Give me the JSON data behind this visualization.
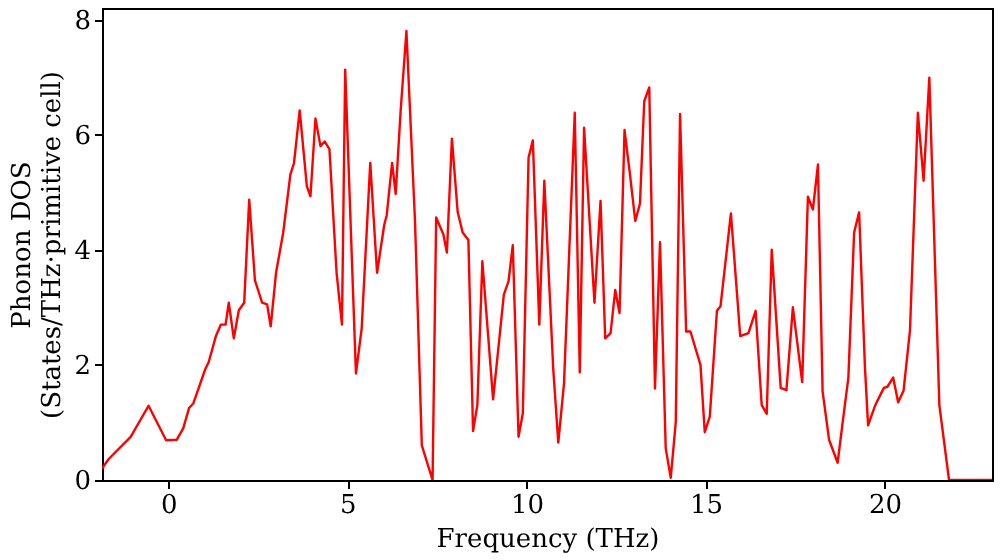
{
  "chart_data": {
    "type": "line",
    "xlabel": "Frequency (THz)",
    "ylabel": "Phonon DOS\n(States/THz·primitive cell)",
    "xlim": [
      -1.85,
      23
    ],
    "xticks": [
      0,
      5,
      10,
      15,
      20
    ],
    "ylim": [
      0,
      8.2
    ],
    "yticks": [
      0,
      2,
      4,
      6,
      8
    ],
    "grid": false,
    "legend": false,
    "marker": "none",
    "line_style": "solid",
    "x": [
      -1.85,
      -1.67,
      -1.05,
      -0.55,
      -0.06,
      0.24,
      0.42,
      0.58,
      0.7,
      1.03,
      1.13,
      1.33,
      1.47,
      1.6,
      1.69,
      1.83,
      1.97,
      2.12,
      2.26,
      2.42,
      2.62,
      2.76,
      2.86,
      3.01,
      3.21,
      3.41,
      3.51,
      3.67,
      3.87,
      3.97,
      4.11,
      4.25,
      4.37,
      4.5,
      4.7,
      4.85,
      4.94,
      5.24,
      5.4,
      5.64,
      5.83,
      6.03,
      6.1,
      6.25,
      6.35,
      6.49,
      6.65,
      6.89,
      7.08,
      7.38,
      7.48,
      7.68,
      7.78,
      7.92,
      8.08,
      8.22,
      8.38,
      8.51,
      8.63,
      8.77,
      9.07,
      9.37,
      9.5,
      9.62,
      9.78,
      9.9,
      10.06,
      10.18,
      10.36,
      10.5,
      10.75,
      10.89,
      11.05,
      11.35,
      11.49,
      11.61,
      11.9,
      12.07,
      12.2,
      12.35,
      12.48,
      12.6,
      12.74,
      12.88,
      13.04,
      13.17,
      13.29,
      13.43,
      13.59,
      13.73,
      13.89,
      14.03,
      14.17,
      14.29,
      14.46,
      14.58,
      14.86,
      14.98,
      15.12,
      15.32,
      15.42,
      15.71,
      15.97,
      16.2,
      16.4,
      16.57,
      16.71,
      16.85,
      17.1,
      17.26,
      17.44,
      17.7,
      17.86,
      18.0,
      18.14,
      18.27,
      18.45,
      18.69,
      18.83,
      18.99,
      19.15,
      19.29,
      19.45,
      19.54,
      19.74,
      19.98,
      20.08,
      20.24,
      20.38,
      20.53,
      20.71,
      20.93,
      21.09,
      21.25,
      21.53,
      21.8,
      23
    ],
    "series": [
      {
        "color": "#ff0000",
        "values": [
          0.2,
          0.36,
          0.75,
          1.29,
          0.69,
          0.7,
          0.9,
          1.25,
          1.33,
          1.92,
          2.05,
          2.5,
          2.7,
          2.7,
          3.08,
          2.46,
          2.95,
          3.08,
          4.87,
          3.47,
          3.08,
          3.05,
          2.67,
          3.6,
          4.3,
          5.31,
          5.5,
          6.42,
          5.1,
          4.93,
          6.28,
          5.8,
          5.88,
          5.75,
          3.6,
          2.7,
          7.13,
          1.85,
          2.63,
          5.51,
          3.6,
          4.43,
          4.6,
          5.51,
          4.97,
          6.43,
          7.8,
          4.49,
          0.6,
          0,
          4.56,
          4.27,
          3.95,
          5.93,
          4.66,
          4.3,
          4.17,
          0.85,
          1.3,
          3.8,
          1.4,
          3.22,
          3.45,
          4.08,
          0.75,
          1.16,
          5.6,
          5.9,
          2.7,
          5.2,
          1.92,
          0.65,
          1.68,
          6.38,
          1.87,
          6.12,
          3.08,
          4.85,
          2.46,
          2.55,
          3.3,
          2.9,
          6.08,
          5.37,
          4.5,
          4.8,
          6.58,
          6.82,
          1.59,
          4.13,
          0.55,
          0.04,
          1.0,
          6.36,
          2.58,
          2.58,
          2.0,
          0.83,
          1.1,
          2.94,
          3.02,
          4.63,
          2.5,
          2.55,
          2.94,
          1.3,
          1.15,
          4.0,
          1.6,
          1.56,
          3.0,
          1.7,
          4.92,
          4.7,
          5.48,
          1.54,
          0.7,
          0.3,
          1.0,
          1.78,
          4.3,
          4.65,
          1.99,
          0.95,
          1.3,
          1.6,
          1.62,
          1.78,
          1.35,
          1.55,
          2.6,
          6.38,
          5.2,
          6.99,
          1.3,
          0,
          0
        ]
      }
    ]
  }
}
